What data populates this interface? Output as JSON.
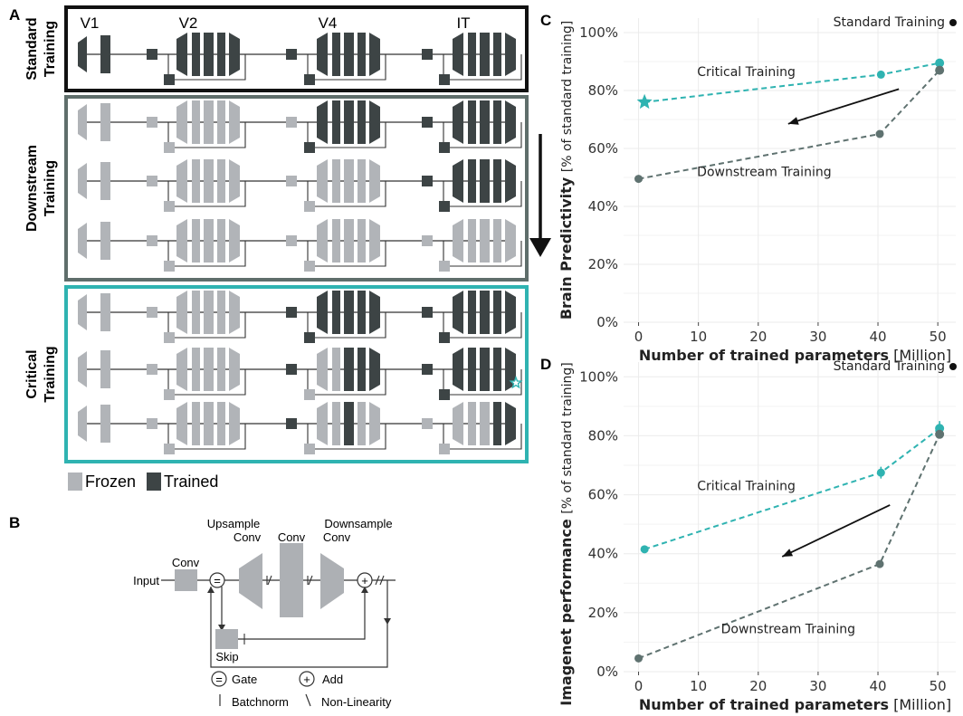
{
  "colors": {
    "frozen": "#b1b4b8",
    "trained": "#3d4445",
    "standard_box": "#111111",
    "downstream_box": "#5f6e6b",
    "critical_box": "#2fb3b1",
    "critical_series": "#2fb3b1",
    "downstream_series": "#5f7270",
    "grid": "#ebebeb"
  },
  "panel_a": {
    "letter": "A",
    "stages": [
      "V1",
      "V2",
      "V4",
      "IT"
    ],
    "groups": [
      {
        "label_line1": "Standard",
        "label_line2": "Training",
        "rows": [
          [
            1,
            1,
            1,
            1,
            1,
            1,
            1,
            1,
            1,
            1,
            1,
            1,
            1,
            1,
            1,
            1,
            1,
            1,
            1,
            1
          ]
        ]
      },
      {
        "label_line1": "Downstream",
        "label_line2": "Training",
        "rows": [
          [
            0,
            0,
            0,
            0,
            0,
            0,
            0,
            0,
            0,
            1,
            1,
            1,
            1,
            1,
            1,
            1,
            1,
            1,
            1,
            1
          ],
          [
            0,
            0,
            0,
            0,
            0,
            0,
            0,
            0,
            0,
            0,
            0,
            0,
            0,
            0,
            1,
            1,
            1,
            1,
            1,
            1
          ],
          [
            0,
            0,
            0,
            0,
            0,
            0,
            0,
            0,
            0,
            0,
            0,
            0,
            0,
            0,
            0,
            0,
            0,
            0,
            0,
            0
          ]
        ]
      },
      {
        "label_line1": "Critical",
        "label_line2": "Training",
        "rows": [
          [
            0,
            0,
            0,
            0,
            0,
            0,
            0,
            0,
            1,
            1,
            1,
            1,
            1,
            1,
            1,
            1,
            1,
            1,
            1,
            1
          ],
          [
            0,
            0,
            0,
            0,
            0,
            0,
            0,
            0,
            1,
            0,
            0,
            0,
            1,
            1,
            1,
            1,
            1,
            1,
            1,
            1
          ],
          [
            0,
            0,
            0,
            0,
            0,
            0,
            0,
            0,
            1,
            0,
            0,
            0,
            1,
            0,
            0,
            0,
            0,
            0,
            0,
            1
          ]
        ]
      }
    ],
    "legend": {
      "frozen": "Frozen",
      "trained": "Trained"
    }
  },
  "panel_b": {
    "letter": "B",
    "input": "Input",
    "conv": "Conv",
    "upsample_line1": "Upsample",
    "upsample_line2": "Conv",
    "mid_conv": "Conv",
    "downsample_line1": "Downsample",
    "downsample_line2": "Conv",
    "skip": "Skip",
    "gate_symbol": "=",
    "gate": "Gate",
    "add_symbol": "+",
    "add": "Add",
    "batchnorm": "Batchnorm",
    "nonlinearity": "Non-Linearity"
  },
  "chart_data": [
    {
      "panel": "C",
      "type": "line",
      "ylabel_bold": "Brain Predictivity",
      "ylabel_light": "[% of standard training]",
      "xlabel_bold": "Number of trained parameters",
      "xlabel_light": "[Million]",
      "xlim": [
        -2.5,
        53
      ],
      "ylim": [
        0,
        1.05
      ],
      "xticks": [
        0,
        10,
        20,
        30,
        40,
        50
      ],
      "yticks": [
        0,
        0.2,
        0.4,
        0.6,
        0.8,
        1.0
      ],
      "yticklabels": [
        "0%",
        "20%",
        "40%",
        "60%",
        "80%",
        "100%"
      ],
      "standard_label": "Standard Training",
      "series": [
        {
          "name": "Critical Training",
          "x": [
            1,
            40.5,
            50.3
          ],
          "y": [
            0.76,
            0.855,
            0.895
          ],
          "errors": [
            0,
            0,
            0
          ],
          "first_marker": "star"
        },
        {
          "name": "Downstream Training",
          "x": [
            0,
            40.3,
            50.3
          ],
          "y": [
            0.495,
            0.65,
            0.87
          ],
          "errors": [
            0,
            0,
            0
          ],
          "first_marker": "dot"
        }
      ],
      "labels": [
        {
          "text": "Critical Training",
          "x": 18,
          "y": 0.85
        },
        {
          "text": "Downstream Training",
          "x": 21,
          "y": 0.505
        }
      ],
      "arrow": {
        "from": [
          43.5,
          0.805
        ],
        "to": [
          25,
          0.685
        ]
      }
    },
    {
      "panel": "D",
      "type": "line",
      "ylabel_bold": "Imagenet performance",
      "ylabel_light": "[% of standard training]",
      "xlabel_bold": "Number of trained parameters",
      "xlabel_light": "[Million]",
      "xlim": [
        -2.5,
        53
      ],
      "ylim": [
        0,
        1.05
      ],
      "xticks": [
        0,
        10,
        20,
        30,
        40,
        50
      ],
      "yticks": [
        0,
        0.2,
        0.4,
        0.6,
        0.8,
        1.0
      ],
      "yticklabels": [
        "0%",
        "20%",
        "40%",
        "60%",
        "80%",
        "100%"
      ],
      "standard_label": "Standard Training",
      "series": [
        {
          "name": "Critical Training",
          "x": [
            1,
            40.5,
            50.3
          ],
          "y": [
            0.415,
            0.675,
            0.825
          ],
          "errors": [
            0,
            0.02,
            0.025
          ],
          "first_marker": "dot"
        },
        {
          "name": "Downstream Training",
          "x": [
            0,
            40.3,
            50.3
          ],
          "y": [
            0.045,
            0.365,
            0.805
          ],
          "errors": [
            0,
            0,
            0
          ],
          "first_marker": "dot"
        }
      ],
      "labels": [
        {
          "text": "Critical Training",
          "x": 18,
          "y": 0.615
        },
        {
          "text": "Downstream Training",
          "x": 25,
          "y": 0.13
        }
      ],
      "arrow": {
        "from": [
          42,
          0.565
        ],
        "to": [
          24,
          0.39
        ]
      }
    }
  ]
}
